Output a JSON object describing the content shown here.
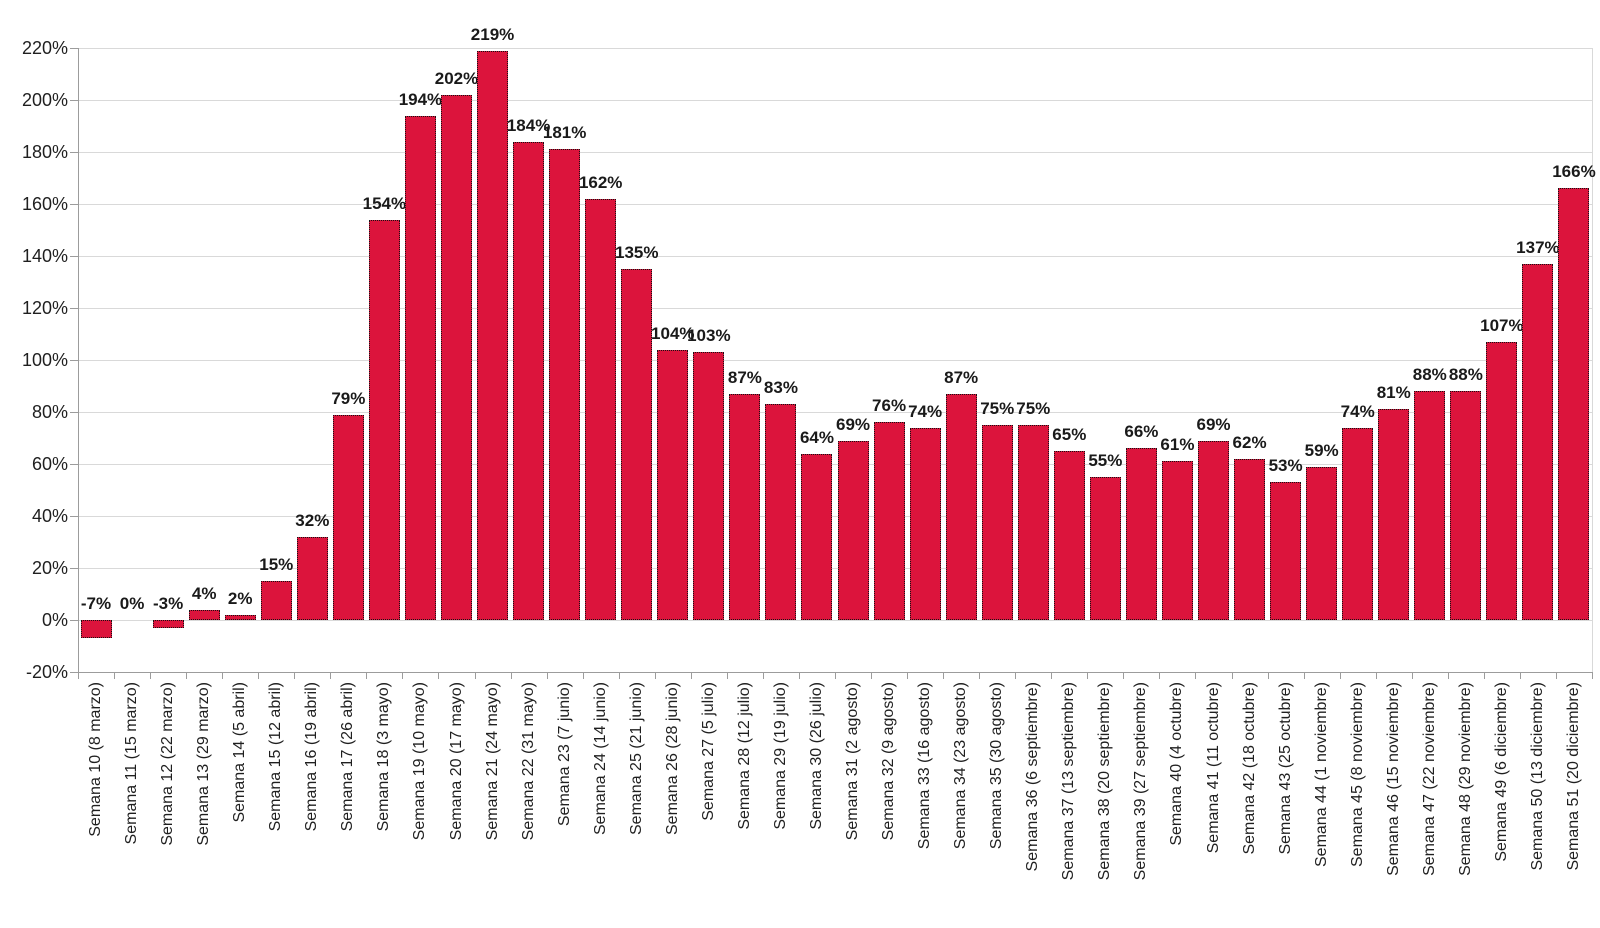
{
  "chart_data": {
    "type": "bar",
    "title": "",
    "xlabel": "",
    "ylabel": "",
    "grid": true,
    "legend": false,
    "ylim": [
      -20,
      220
    ],
    "y_tick_step": 20,
    "y_tick_values": [
      -20,
      0,
      20,
      40,
      60,
      80,
      100,
      120,
      140,
      160,
      180,
      200,
      220
    ],
    "y_tick_labels": [
      "-20%",
      "0%",
      "20%",
      "40%",
      "60%",
      "80%",
      "100%",
      "120%",
      "140%",
      "160%",
      "180%",
      "200%",
      "220%"
    ],
    "categories": [
      "Semana 10 (8 marzo)",
      "Semana 11 (15 marzo)",
      "Semana 12 (22 marzo)",
      "Semana 13 (29 marzo)",
      "Semana 14 (5 abril)",
      "Semana 15 (12 abril)",
      "Semana 16 (19 abril)",
      "Semana 17 (26 abril)",
      "Semana 18 (3 mayo)",
      "Semana 19 (10 mayo)",
      "Semana 20 (17 mayo)",
      "Semana 21 (24 mayo)",
      "Semana 22 (31 mayo)",
      "Semana 23 (7 junio)",
      "Semana 24 (14 junio)",
      "Semana 25 (21 junio)",
      "Semana 26 (28 junio)",
      "Semana 27 (5 julio)",
      "Semana 28 (12 julio)",
      "Semana 29 (19 julio)",
      "Semana 30 (26 julio)",
      "Semana 31 (2 agosto)",
      "Semana 32 (9 agosto)",
      "Semana 33 (16 agosto)",
      "Semana 34 (23 agosto)",
      "Semana 35 (30 agosto)",
      "Semana 36 (6 septiembre)",
      "Semana 37 (13 septiembre)",
      "Semana 38 (20 septiembre)",
      "Semana 39 (27 septiembre)",
      "Semana 40 (4 octubre)",
      "Semana 41 (11 octubre)",
      "Semana 42 (18 octubre)",
      "Semana 43 (25 octubre)",
      "Semana 44 (1 noviembre)",
      "Semana 45 (8 noviembre)",
      "Semana 46 (15 noviembre)",
      "Semana 47 (22 noviembre)",
      "Semana 48 (29 noviembre)",
      "Semana 49 (6 diciembre)",
      "Semana 50 (13 diciembre)",
      "Semana 51 (20 diciembre)"
    ],
    "values": [
      -7,
      0,
      -3,
      4,
      2,
      15,
      32,
      79,
      154,
      194,
      202,
      219,
      184,
      181,
      162,
      135,
      104,
      103,
      87,
      83,
      64,
      69,
      76,
      74,
      87,
      75,
      75,
      65,
      55,
      66,
      61,
      69,
      62,
      53,
      59,
      74,
      81,
      88,
      88,
      107,
      137,
      166
    ],
    "data_labels": [
      "-7%",
      "0%",
      "-3%",
      "4%",
      "2%",
      "15%",
      "32%",
      "79%",
      "154%",
      "194%",
      "202%",
      "219%",
      "184%",
      "181%",
      "162%",
      "135%",
      "104%",
      "103%",
      "87%",
      "83%",
      "64%",
      "69%",
      "76%",
      "74%",
      "87%",
      "75%",
      "75%",
      "65%",
      "55%",
      "66%",
      "61%",
      "69%",
      "62%",
      "53%",
      "59%",
      "74%",
      "81%",
      "88%",
      "88%",
      "107%",
      "137%",
      "166%"
    ],
    "colors": {
      "bar_fill": "#dc143c",
      "bar_border": "#141414",
      "gridline": "#d9d9d9",
      "axis_line": "#9c9c9c",
      "right_border": "#d9d9d9",
      "text": "#1f1f1f"
    },
    "legend_position": "none"
  }
}
